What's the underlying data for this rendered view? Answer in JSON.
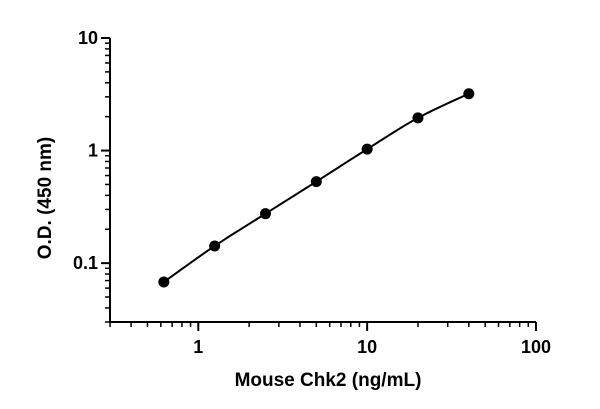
{
  "chart_data": {
    "type": "scatter",
    "title": "",
    "xlabel": "Mouse Chk2 (ng/mL)",
    "ylabel": "O.D. (450 nm)",
    "x_scale": "log",
    "y_scale": "log",
    "xlim": [
      0.3,
      100
    ],
    "ylim": [
      0.03,
      10
    ],
    "x_ticks": [
      {
        "value": 1,
        "label": "1"
      },
      {
        "value": 10,
        "label": "10"
      },
      {
        "value": 100,
        "label": "100"
      }
    ],
    "y_ticks": [
      {
        "value": 0.1,
        "label": "0.1"
      },
      {
        "value": 1,
        "label": "1"
      },
      {
        "value": 10,
        "label": "10"
      }
    ],
    "grid": false,
    "legend": "none",
    "series": [
      {
        "x": [
          0.625,
          1.25,
          2.5,
          5,
          10,
          20,
          40
        ],
        "y": [
          0.068,
          0.142,
          0.275,
          0.53,
          1.03,
          1.95,
          3.2
        ],
        "marker": "circle",
        "fit_line": true,
        "color": "#000000"
      }
    ]
  }
}
